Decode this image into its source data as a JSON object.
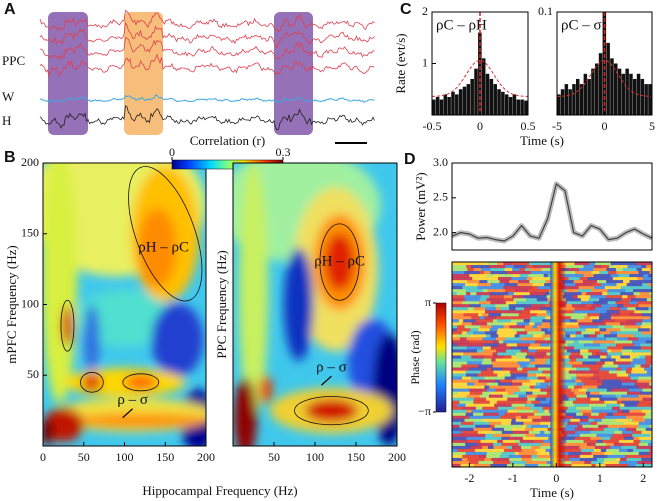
{
  "chart_data": [
    {
      "type": "traces",
      "label": "A",
      "row_labels": [
        "PPC",
        "W",
        "H"
      ]
    },
    {
      "type": "heatmap",
      "label": "B",
      "xlim": [
        0,
        200
      ],
      "xticks": [
        0,
        50,
        100,
        150,
        200
      ],
      "ylim": [
        0,
        200
      ],
      "yticks": [
        50,
        100,
        150,
        200
      ],
      "ylabel": "mPFC Frequency (Hz)",
      "xlabel": "Hippocampal Frequency (Hz)",
      "annotations": [
        "ρH – ρC",
        "ρ – σ"
      ],
      "colorbar": {
        "label": "Correlation (r)",
        "lim": [
          0,
          0.3
        ],
        "ticks": [
          0,
          0.3
        ]
      }
    },
    {
      "type": "heatmap",
      "xlim": [
        0,
        200
      ],
      "xticks": [
        50,
        100,
        150,
        200
      ],
      "ylim": [
        0,
        200
      ],
      "ylabel": "PPC Frequency (Hz)",
      "annotations": [
        "ρH – ρC",
        "ρ – σ"
      ]
    },
    {
      "type": "histogram",
      "label": "C",
      "title": "ρC – ρH",
      "bins": [
        -0.5,
        -0.46,
        -0.42,
        -0.38,
        -0.34,
        -0.3,
        -0.26,
        -0.22,
        -0.18,
        -0.14,
        -0.1,
        -0.06,
        -0.02,
        0.02,
        0.06,
        0.1,
        0.14,
        0.18,
        0.22,
        0.26,
        0.3,
        0.34,
        0.38,
        0.42,
        0.46,
        0.5
      ],
      "values": [
        0.3,
        0.35,
        0.3,
        0.4,
        0.35,
        0.45,
        0.4,
        0.5,
        0.55,
        0.6,
        0.7,
        0.9,
        1.6,
        1.1,
        0.8,
        0.7,
        0.6,
        0.5,
        0.45,
        0.4,
        0.35,
        0.4,
        0.3,
        0.3,
        0.28
      ],
      "color": "#111111",
      "xlim": [
        -0.5,
        0.5
      ],
      "xticks": [
        -0.5,
        0,
        0.5
      ],
      "ylim": [
        0,
        2
      ],
      "yticks": [
        1,
        2
      ],
      "ylabel": "Rate (evt/s)",
      "xlabel": "Time (s)"
    },
    {
      "type": "histogram",
      "title": "ρC – σ",
      "bins": [
        -5,
        -4.6,
        -4.2,
        -3.8,
        -3.4,
        -3,
        -2.6,
        -2.2,
        -1.8,
        -1.4,
        -1,
        -0.6,
        -0.2,
        0.2,
        0.6,
        1,
        1.4,
        1.8,
        2.2,
        2.6,
        3,
        3.4,
        3.8,
        4.2,
        4.6,
        5
      ],
      "values": [
        0.02,
        0.025,
        0.03,
        0.025,
        0.03,
        0.035,
        0.03,
        0.04,
        0.035,
        0.045,
        0.05,
        0.06,
        0.1,
        0.07,
        0.055,
        0.05,
        0.045,
        0.04,
        0.045,
        0.04,
        0.035,
        0.04,
        0.035,
        0.03,
        0.03
      ],
      "color": "#111111",
      "xlim": [
        -5,
        5
      ],
      "xticks": [
        -5,
        0,
        5
      ],
      "ylim": [
        0,
        0.1
      ],
      "yticks": [
        0.1
      ]
    },
    {
      "type": "line",
      "label": "D",
      "x": [
        -2.4,
        -2.2,
        -2,
        -1.8,
        -1.6,
        -1.4,
        -1.2,
        -1,
        -0.8,
        -0.6,
        -0.4,
        -0.2,
        0,
        0.2,
        0.4,
        0.6,
        0.8,
        1,
        1.2,
        1.4,
        1.6,
        1.8,
        2,
        2.2
      ],
      "values": [
        1.95,
        2,
        1.98,
        1.92,
        1.93,
        1.9,
        1.88,
        1.95,
        2.1,
        1.95,
        1.92,
        2.2,
        2.7,
        2.6,
        2,
        1.95,
        2.1,
        2.05,
        1.9,
        1.92,
        2,
        2.05,
        1.98,
        1.92
      ],
      "color": "#444444",
      "xlim": [
        -2.4,
        2.2
      ],
      "ylim": [
        1.75,
        3
      ],
      "yticks": [
        {
          "value": 2,
          "label": "2.0"
        },
        {
          "value": 2.5,
          "label": "2.5"
        },
        {
          "value": 3,
          "label": "3.0"
        }
      ],
      "ylabel": "Power (mV²)"
    },
    {
      "type": "raster",
      "xlim": [
        -2.4,
        2.2
      ],
      "xticks": [
        -2,
        -1,
        0,
        1,
        2
      ],
      "xlabel": "Time (s)",
      "colorbar": {
        "label": "Phase (rad)",
        "lim": [
          -3.1416,
          3.1416
        ],
        "ticks": [
          {
            "value": 3.1416,
            "label": "π"
          },
          {
            "value": -3.1416,
            "label": "−π"
          }
        ]
      }
    }
  ]
}
